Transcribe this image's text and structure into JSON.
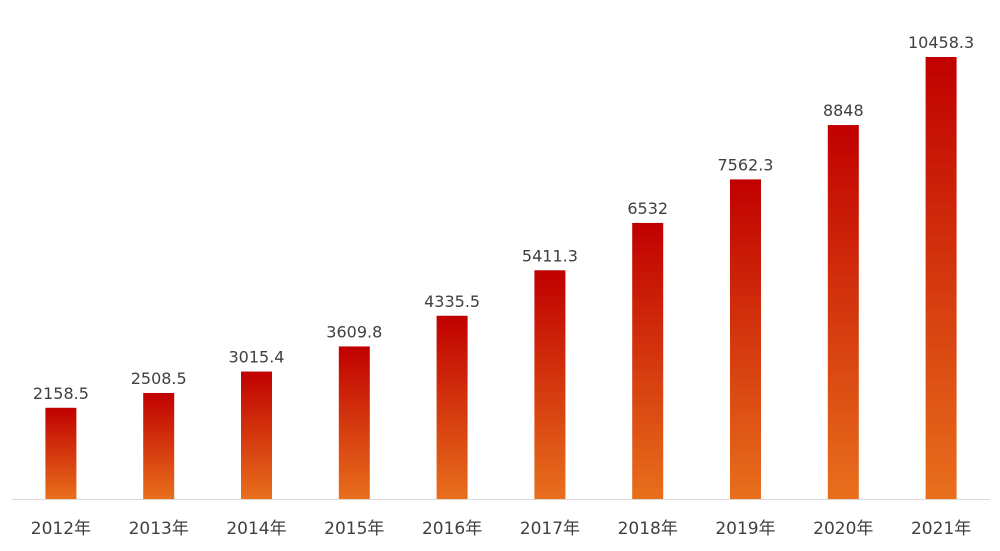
{
  "chart_data": {
    "type": "bar",
    "categories": [
      "2012年",
      "2013年",
      "2014年",
      "2015年",
      "2016年",
      "2017年",
      "2018年",
      "2019年",
      "2020年",
      "2021年"
    ],
    "values": [
      2158.5,
      2508.5,
      3015.4,
      3609.8,
      4335.5,
      5411.3,
      6532,
      7562.3,
      8848,
      10458.3
    ],
    "value_labels": [
      "2158.5",
      "2508.5",
      "3015.4",
      "3609.8",
      "4335.5",
      "5411.3",
      "6532",
      "7562.3",
      "8848",
      "10458.3"
    ],
    "title": "",
    "xlabel": "",
    "ylabel": "",
    "ylim": [
      0,
      10458.3
    ],
    "grid": false,
    "legend": "none",
    "colors": {
      "bar_top": "#C00000",
      "bar_bottom": "#E86F1C",
      "axis": "#D9D9D9",
      "text": "#404040"
    }
  }
}
